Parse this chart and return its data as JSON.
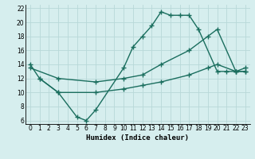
{
  "xlabel": "Humidex (Indice chaleur)",
  "xlim": [
    -0.5,
    23.5
  ],
  "ylim": [
    5.5,
    22.5
  ],
  "xticks": [
    0,
    1,
    2,
    3,
    4,
    5,
    6,
    7,
    8,
    9,
    10,
    11,
    12,
    13,
    14,
    15,
    16,
    17,
    18,
    19,
    20,
    21,
    22,
    23
  ],
  "yticks": [
    6,
    8,
    10,
    12,
    14,
    16,
    18,
    20,
    22
  ],
  "background_color": "#d6eeee",
  "grid_color": "#b8d8d8",
  "line_color": "#1a6e5e",
  "line1_x": [
    0,
    1,
    3,
    5,
    6,
    7,
    10,
    11,
    12,
    13,
    14,
    15,
    16,
    17,
    18,
    20,
    21,
    22,
    23
  ],
  "line1_y": [
    14,
    12,
    10,
    6.5,
    6,
    7.5,
    13.5,
    16.5,
    18,
    19.5,
    21.5,
    21,
    21,
    21,
    19,
    13,
    13,
    13,
    13.5
  ],
  "line2_x": [
    0,
    3,
    7,
    10,
    12,
    14,
    17,
    19,
    20,
    22,
    23
  ],
  "line2_y": [
    13.5,
    12,
    11.5,
    12,
    12.5,
    14,
    16,
    18,
    19,
    13,
    13
  ],
  "line3_x": [
    1,
    3,
    7,
    10,
    12,
    14,
    17,
    19,
    20,
    22,
    23
  ],
  "line3_y": [
    12,
    10,
    10,
    10.5,
    11,
    11.5,
    12.5,
    13.5,
    14,
    13,
    13
  ],
  "marker": "+",
  "markersize": 4,
  "linewidth": 1.0
}
